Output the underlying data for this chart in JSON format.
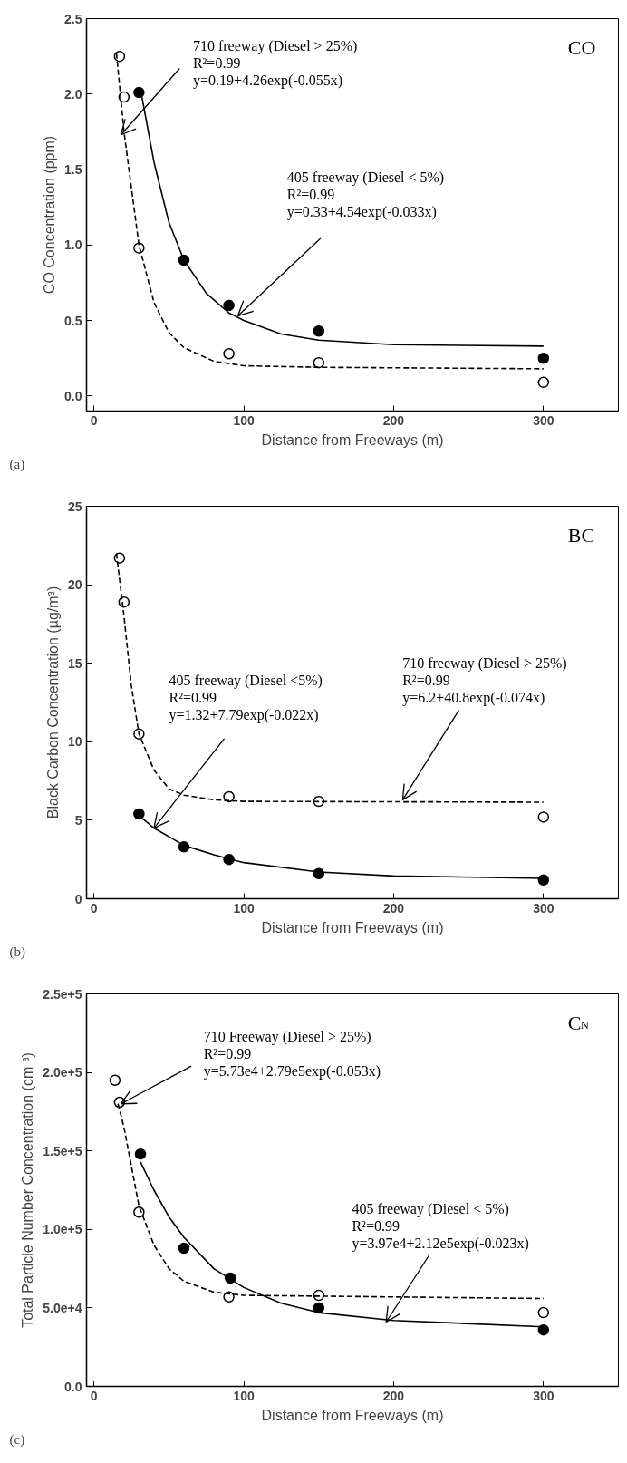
{
  "chart_data": [
    {
      "type": "scatter",
      "xlabel": "Distance from Freeways (m)",
      "ylabel": "CO Concentration (ppm)",
      "xlim": [
        -5,
        350
      ],
      "ylim": [
        -0.1,
        2.5
      ],
      "xticks": [
        0,
        100,
        200,
        300
      ],
      "yticks": [
        {
          "value": 0,
          "label": "0.0"
        },
        0.5,
        {
          "value": 1,
          "label": "1.0"
        },
        1.5,
        {
          "value": 2,
          "label": "2.0"
        },
        2.5
      ],
      "series": [
        {
          "marker": "circle",
          "color": "#ffffff",
          "x": [
            17,
            20,
            30,
            90,
            150,
            300
          ],
          "values": [
            2.25,
            1.98,
            0.98,
            0.28,
            0.22,
            0.09
          ]
        },
        {
          "marker": "circle",
          "color": "#000000",
          "x": [
            30,
            60,
            90,
            150,
            300
          ],
          "values": [
            2.01,
            0.9,
            0.6,
            0.43,
            0.25
          ]
        },
        {
          "type": "line",
          "line_style": "dashed",
          "color": "#000000",
          "x": [
            15,
            20,
            30,
            40,
            50,
            60,
            80,
            100,
            150,
            300
          ],
          "values": [
            2.27,
            1.75,
            1.0,
            0.62,
            0.42,
            0.32,
            0.23,
            0.2,
            0.19,
            0.18
          ]
        },
        {
          "type": "line",
          "line_style": "solid",
          "color": "#000000",
          "x": [
            32,
            40,
            50,
            60,
            75,
            90,
            100,
            125,
            150,
            200,
            300
          ],
          "values": [
            1.98,
            1.55,
            1.15,
            0.9,
            0.68,
            0.55,
            0.5,
            0.41,
            0.37,
            0.34,
            0.33
          ]
        }
      ],
      "annotations": [
        {
          "text": "710 freeway (Diesel > 25%)\nR²=0.99\ny=0.19+4.26exp(-0.055x)",
          "x": 18,
          "y": 1.73
        },
        {
          "text": "405 freeway (Diesel < 5%)\nR²=0.99\ny=0.33+4.54exp(-0.033x)",
          "x": 96,
          "y": 0.53
        },
        "CO",
        "(a)"
      ]
    },
    {
      "type": "scatter",
      "xlabel": "Distance from Freeways (m)",
      "ylabel": "Black Carbon Concentration (µg/m³)",
      "xlim": [
        -5,
        350
      ],
      "ylim": [
        0,
        25
      ],
      "xticks": [
        0,
        100,
        200,
        300
      ],
      "yticks": [
        0,
        5,
        10,
        15,
        20,
        25
      ],
      "series": [
        {
          "marker": "circle",
          "color": "#ffffff",
          "x": [
            17,
            20,
            30,
            90,
            150,
            300
          ],
          "values": [
            21.7,
            18.9,
            10.5,
            6.5,
            6.2,
            5.2
          ]
        },
        {
          "marker": "circle",
          "color": "#000000",
          "x": [
            30,
            60,
            90,
            150,
            300
          ],
          "values": [
            5.4,
            3.3,
            2.5,
            1.6,
            1.2
          ]
        },
        {
          "type": "line",
          "line_style": "dashed",
          "color": "#000000",
          "x": [
            15,
            20,
            25,
            30,
            40,
            50,
            60,
            80,
            100,
            300
          ],
          "values": [
            22,
            18,
            13.5,
            10.5,
            8.2,
            7.0,
            6.6,
            6.3,
            6.2,
            6.15
          ]
        },
        {
          "type": "line",
          "line_style": "solid",
          "color": "#000000",
          "x": [
            30,
            40,
            60,
            80,
            100,
            150,
            200,
            300
          ],
          "values": [
            5.3,
            4.5,
            3.4,
            2.8,
            2.3,
            1.7,
            1.45,
            1.3
          ]
        }
      ],
      "annotations": [
        {
          "text": "405 freeway (Diesel <5%)\nR²=0.99\ny=1.32+7.79exp(-0.022x)",
          "x": 40,
          "y": 4.5
        },
        {
          "text": "710 freeway (Diesel > 25%)\nR²=0.99\ny=6.2+40.8exp(-0.074x)",
          "x": 206,
          "y": 6.3
        },
        "BC",
        "(b)"
      ]
    },
    {
      "type": "scatter",
      "xlabel": "Distance from Freeways (m)",
      "ylabel": "Total Particle Number Concentration (cm⁻³)",
      "xlim": [
        -5,
        350
      ],
      "ylim": [
        0,
        250000
      ],
      "xticks": [
        0,
        100,
        200,
        300
      ],
      "yticks": [
        {
          "value": 0,
          "label": "0.0"
        },
        {
          "value": 50000,
          "label": "5.0e+4"
        },
        {
          "value": 100000,
          "label": "1.0e+5"
        },
        {
          "value": 150000,
          "label": "1.5e+5"
        },
        {
          "value": 200000,
          "label": "2.0e+5"
        },
        {
          "value": 250000,
          "label": "2.5e+5"
        }
      ],
      "series": [
        {
          "marker": "circle",
          "color": "#ffffff",
          "x": [
            14,
            17,
            30,
            90,
            150,
            300
          ],
          "values": [
            195000,
            181000,
            111000,
            57000,
            58000,
            47000
          ]
        },
        {
          "marker": "circle",
          "color": "#000000",
          "x": [
            31,
            60,
            91,
            150,
            300
          ],
          "values": [
            148000,
            88000,
            69000,
            50000,
            36000
          ]
        },
        {
          "type": "line",
          "line_style": "dashed",
          "color": "#000000",
          "x": [
            16,
            20,
            25,
            30,
            40,
            50,
            60,
            80,
            100,
            150,
            300
          ],
          "values": [
            180000,
            165000,
            140000,
            115000,
            90000,
            75000,
            67000,
            60000,
            58000,
            57500,
            56000
          ]
        },
        {
          "type": "line",
          "line_style": "solid",
          "color": "#000000",
          "x": [
            31,
            40,
            50,
            60,
            80,
            100,
            125,
            150,
            200,
            300
          ],
          "values": [
            143000,
            125000,
            108000,
            95000,
            75000,
            63000,
            53000,
            47000,
            42000,
            38000
          ]
        }
      ],
      "annotations": [
        {
          "text": "710 Freeway (Diesel > 25%)\nR²=0.99\ny=5.73e4+2.79e5exp(-0.053x)",
          "x": 18,
          "y": 180000
        },
        {
          "text": "405 freeway (Diesel < 5%)\nR²=0.99\ny=3.97e4+2.12e5exp(-0.023x)",
          "x": 195,
          "y": 41000
        },
        "C$_{N}$",
        "(c)"
      ]
    }
  ]
}
